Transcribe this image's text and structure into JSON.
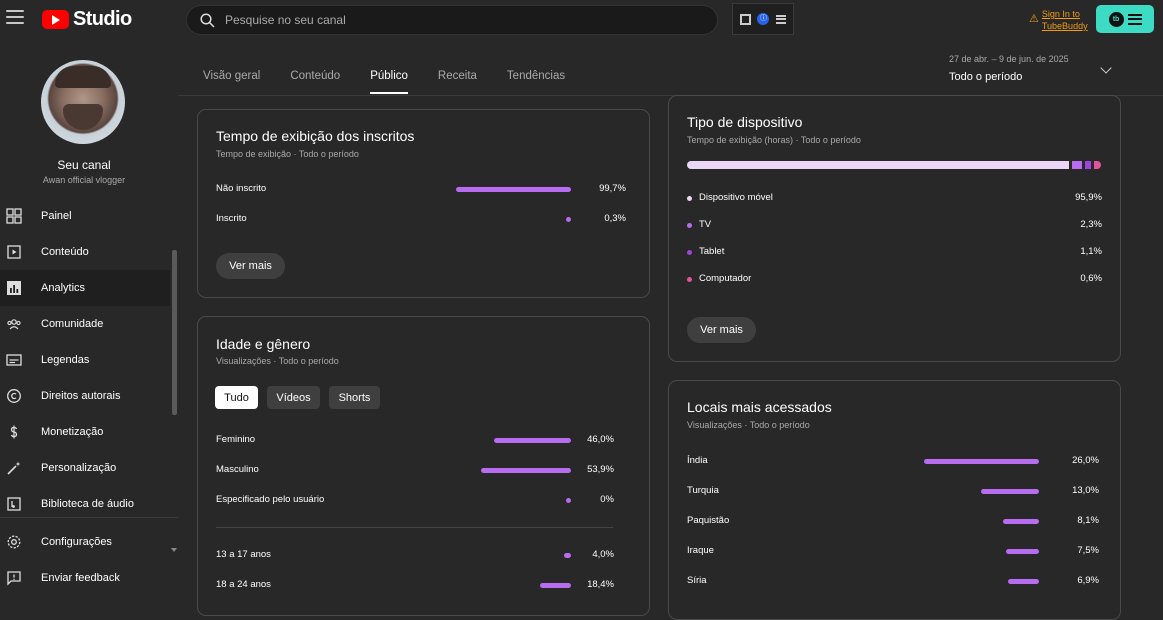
{
  "app": {
    "logo_text": "Studio"
  },
  "search": {
    "placeholder": "Pesquise no seu canal"
  },
  "tubebuddy": {
    "sign_in": "Sign In to TubeBuddy",
    "badge": "tb"
  },
  "extension": {
    "badge": "ⓘ"
  },
  "channel": {
    "name": "Seu canal",
    "handle": "Awan official vlogger"
  },
  "sidebar": {
    "items": [
      {
        "label": "Painel",
        "icon": "dashboard-icon"
      },
      {
        "label": "Conteúdo",
        "icon": "content-icon"
      },
      {
        "label": "Analytics",
        "icon": "analytics-icon",
        "active": true
      },
      {
        "label": "Comunidade",
        "icon": "community-icon"
      },
      {
        "label": "Legendas",
        "icon": "subtitles-icon"
      },
      {
        "label": "Direitos autorais",
        "icon": "copyright-icon"
      },
      {
        "label": "Monetização",
        "icon": "dollar-icon"
      },
      {
        "label": "Personalização",
        "icon": "magic-wand-icon"
      },
      {
        "label": "Biblioteca de áudio",
        "icon": "audio-library-icon"
      }
    ],
    "bottom": [
      {
        "label": "Configurações",
        "icon": "gear-icon"
      },
      {
        "label": "Enviar feedback",
        "icon": "feedback-icon"
      }
    ]
  },
  "tabs": [
    "Visão geral",
    "Conteúdo",
    "Público",
    "Receita",
    "Tendências"
  ],
  "active_tab": "Público",
  "date_range": {
    "range": "27 de abr. – 9 de jun. de 2025",
    "label": "Todo o período"
  },
  "subs_watch": {
    "title": "Tempo de exibição dos inscritos",
    "subtitle": "Tempo de exibição · Todo o período",
    "rows": [
      {
        "label": "Não inscrito",
        "value": "99,7%",
        "pct": 99.7
      },
      {
        "label": "Inscrito",
        "value": "0,3%",
        "pct": 0.3
      }
    ],
    "button": "Ver mais"
  },
  "age_gender": {
    "title": "Idade e gênero",
    "subtitle": "Visualizações · Todo o período",
    "chips": [
      "Tudo",
      "Vídeos",
      "Shorts"
    ],
    "active_chip": "Tudo",
    "gender": [
      {
        "label": "Feminino",
        "value": "46,0%",
        "pct": 46.0
      },
      {
        "label": "Masculino",
        "value": "53,9%",
        "pct": 53.9
      },
      {
        "label": "Especificado pelo usuário",
        "value": "0%",
        "pct": 0
      }
    ],
    "age": [
      {
        "label": "13 a 17 anos",
        "value": "4,0%",
        "pct": 4.0
      },
      {
        "label": "18 a 24 anos",
        "value": "18,4%",
        "pct": 18.4
      }
    ]
  },
  "device": {
    "title": "Tipo de dispositivo",
    "subtitle": "Tempo de exibição (horas) · Todo o período",
    "items": [
      {
        "label": "Dispositivo móvel",
        "value": "95,9%",
        "pct": 95.9,
        "color": "#ead7f7"
      },
      {
        "label": "TV",
        "value": "2,3%",
        "pct": 2.3,
        "color": "#b86cf0"
      },
      {
        "label": "Tablet",
        "value": "1,1%",
        "pct": 1.1,
        "color": "#9c44dc"
      },
      {
        "label": "Computador",
        "value": "0,6%",
        "pct": 0.6,
        "color": "#e0559a"
      }
    ],
    "button": "Ver mais"
  },
  "locations": {
    "title": "Locais mais acessados",
    "subtitle": "Visualizações · Todo o período",
    "rows": [
      {
        "label": "Índia",
        "value": "26,0%",
        "pct": 26.0
      },
      {
        "label": "Turquia",
        "value": "13,0%",
        "pct": 13.0
      },
      {
        "label": "Paquistão",
        "value": "8,1%",
        "pct": 8.1
      },
      {
        "label": "Iraque",
        "value": "7,5%",
        "pct": 7.5
      },
      {
        "label": "Síria",
        "value": "6,9%",
        "pct": 6.9
      }
    ]
  },
  "colors": {
    "bar": "#b86cf0",
    "background": "#282828",
    "accent_tubebuddy": "#3ddbc4"
  }
}
